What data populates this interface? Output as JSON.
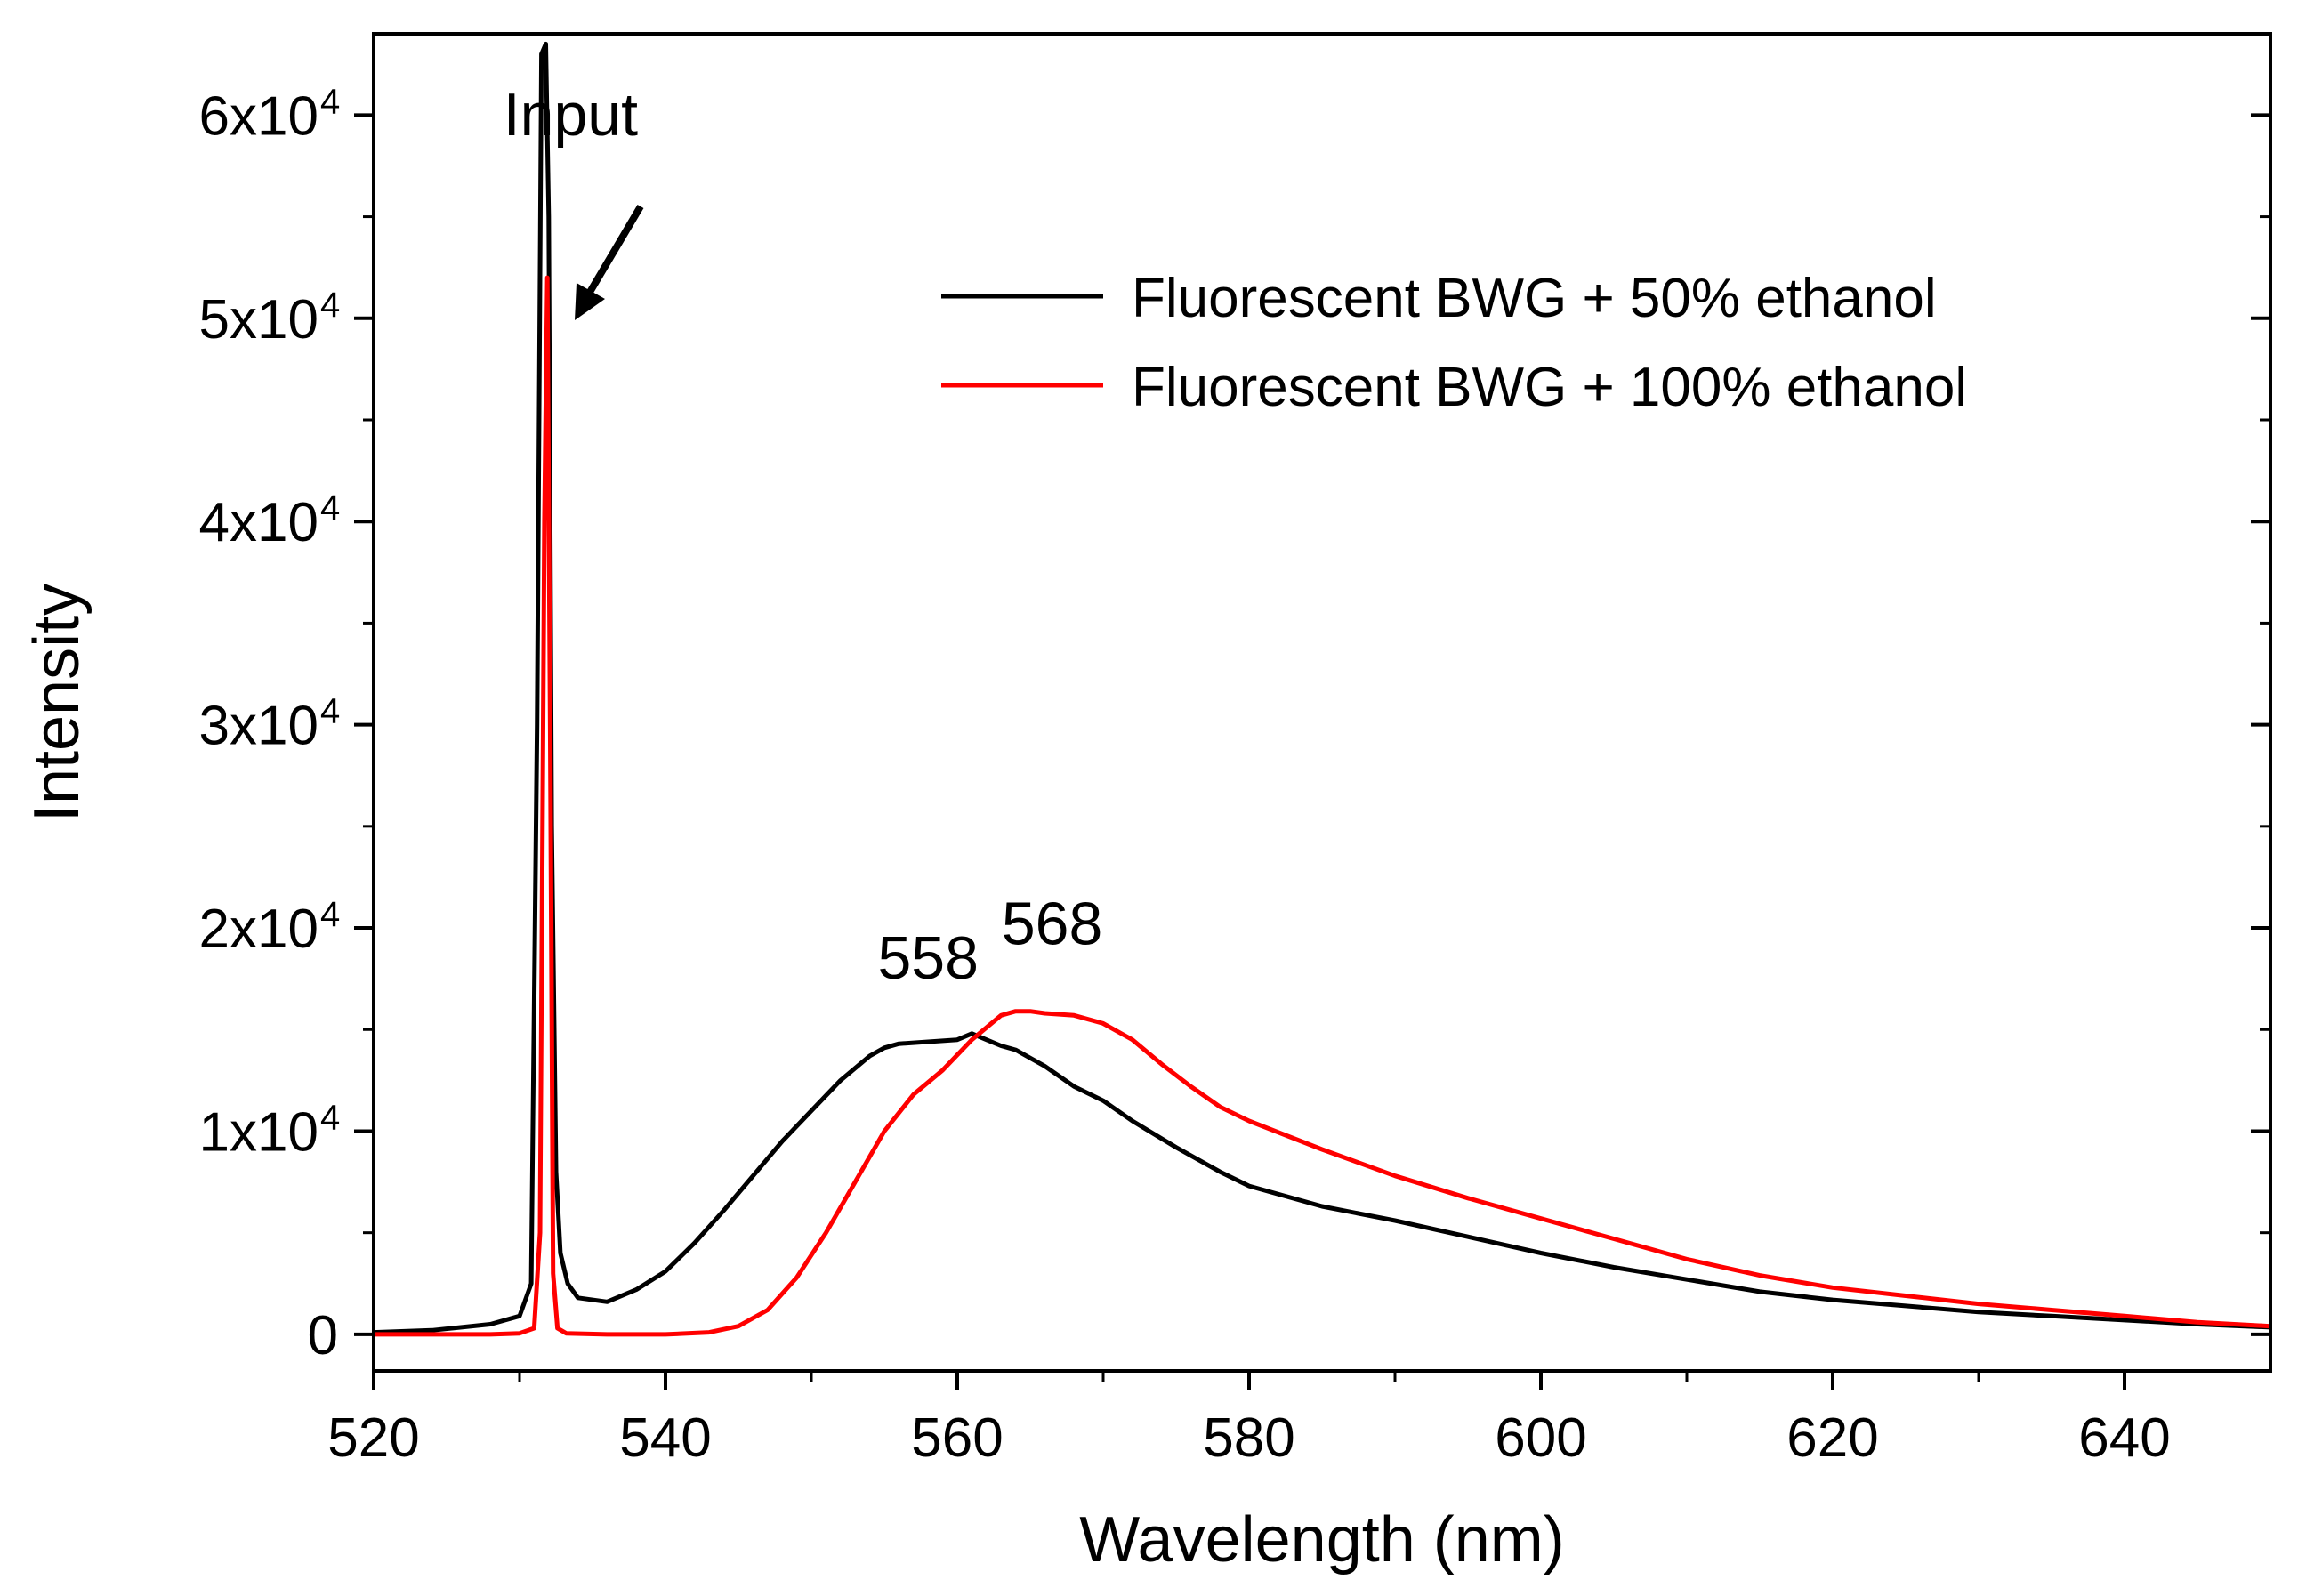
{
  "chart_data": {
    "type": "line",
    "title": "",
    "xlabel": "Wavelength (nm)",
    "ylabel": "Intensity",
    "xlim": [
      520,
      650
    ],
    "ylim": [
      -1800,
      64000
    ],
    "xticks": [
      520,
      540,
      560,
      580,
      600,
      620,
      640
    ],
    "xtick_labels": [
      "520",
      "540",
      "560",
      "580",
      "600",
      "620",
      "640"
    ],
    "yticks": [
      0,
      10000,
      20000,
      30000,
      40000,
      50000,
      60000
    ],
    "ytick_labels": [
      {
        "base": "0",
        "exp": ""
      },
      {
        "base": "1x10",
        "exp": "4"
      },
      {
        "base": "2x10",
        "exp": "4"
      },
      {
        "base": "3x10",
        "exp": "4"
      },
      {
        "base": "4x10",
        "exp": "4"
      },
      {
        "base": "5x10",
        "exp": "4"
      },
      {
        "base": "6x10",
        "exp": "4"
      }
    ],
    "legend_position": "top-right",
    "series": [
      {
        "name": "Fluorescent  BWG + 50% ethanol",
        "color": "#000000",
        "x": [
          520,
          524,
          528,
          530,
          530.8,
          531.2,
          531.5,
          531.8,
          532.0,
          532.2,
          532.5,
          532.8,
          533.3,
          534,
          536,
          538,
          540,
          542,
          544,
          546,
          548,
          550,
          552,
          554,
          555,
          556,
          558,
          560,
          561,
          562,
          563,
          564,
          566,
          568,
          570,
          572,
          575,
          578,
          580,
          585,
          590,
          595,
          600,
          605,
          610,
          615,
          620,
          625,
          630,
          635,
          640,
          645,
          650
        ],
        "y": [
          100,
          200,
          500,
          900,
          2500,
          30000,
          63000,
          63500,
          55000,
          25000,
          8000,
          4000,
          2500,
          1800,
          1600,
          2200,
          3100,
          4500,
          6100,
          7800,
          9500,
          11000,
          12500,
          13700,
          14100,
          14300,
          14400,
          14500,
          14800,
          14500,
          14200,
          14000,
          13200,
          12200,
          11500,
          10500,
          9200,
          8000,
          7300,
          6300,
          5600,
          4800,
          4000,
          3300,
          2700,
          2100,
          1700,
          1400,
          1100,
          900,
          700,
          500,
          350
        ]
      },
      {
        "name": "Fluorescent  BWG + 100% ethanol",
        "color": "#ff0000",
        "x": [
          520,
          528,
          530,
          531.0,
          531.4,
          531.7,
          531.9,
          532.1,
          532.3,
          532.6,
          533.2,
          536,
          540,
          543,
          545,
          547,
          549,
          551,
          553,
          555,
          557,
          559,
          561,
          563,
          564,
          565,
          566,
          568,
          570,
          572,
          574,
          576,
          578,
          580,
          585,
          590,
          595,
          600,
          605,
          610,
          615,
          620,
          625,
          630,
          635,
          640,
          645,
          650
        ],
        "y": [
          0,
          0,
          50,
          300,
          5000,
          40000,
          52000,
          30000,
          3000,
          300,
          50,
          0,
          0,
          100,
          400,
          1200,
          2800,
          5000,
          7500,
          10000,
          11800,
          13000,
          14500,
          15700,
          15900,
          15900,
          15800,
          15700,
          15300,
          14500,
          13300,
          12200,
          11200,
          10500,
          9100,
          7800,
          6700,
          5700,
          4700,
          3700,
          2900,
          2300,
          1900,
          1500,
          1200,
          900,
          600,
          400
        ]
      }
    ],
    "annotations": [
      {
        "text": "Input",
        "x": 533.5,
        "y": 59000
      },
      {
        "text": "558",
        "x": 558,
        "y": 17500
      },
      {
        "text": "568",
        "x": 566.5,
        "y": 19200
      }
    ]
  }
}
